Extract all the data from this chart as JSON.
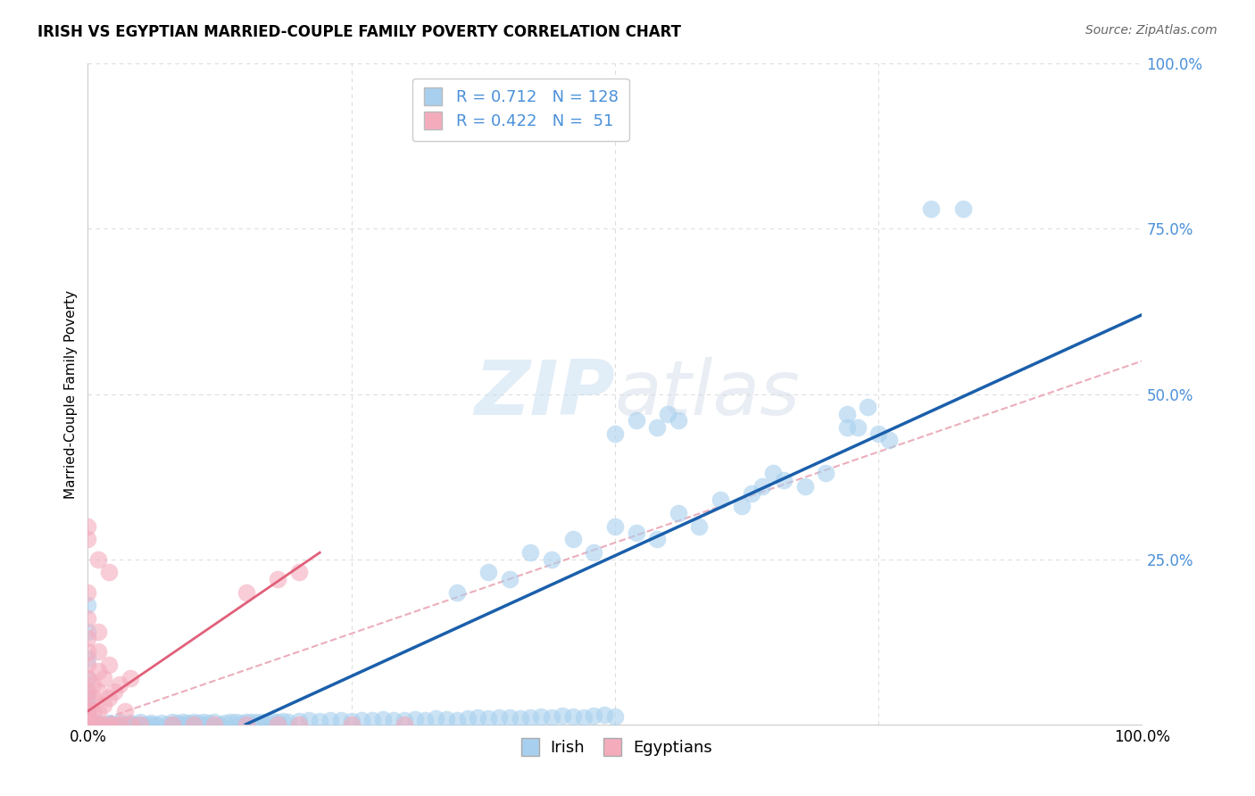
{
  "title": "IRISH VS EGYPTIAN MARRIED-COUPLE FAMILY POVERTY CORRELATION CHART",
  "source": "Source: ZipAtlas.com",
  "ylabel": "Married-Couple Family Poverty",
  "xlim": [
    0.0,
    1.0
  ],
  "ylim": [
    0.0,
    1.0
  ],
  "irish_R": 0.712,
  "irish_N": 128,
  "egyptian_R": 0.422,
  "egyptian_N": 51,
  "irish_color": "#A8D0EE",
  "egyptian_color": "#F4ACBD",
  "irish_line_color": "#1A5FAB",
  "egyptian_line_color": "#E0607A",
  "egyptian_dash_color": "#E8A0B0",
  "grid_color": "#DDDDDD",
  "watermark_color": "#D0E8F5",
  "background_color": "#FFFFFF",
  "title_fontsize": 12,
  "source_fontsize": 10,
  "tick_color": "#4A90D9",
  "ytick_labels": [
    "25.0%",
    "50.0%",
    "75.0%",
    "100.0%"
  ],
  "xtick_labels": [
    "0.0%",
    "100.0%"
  ],
  "irish_scatter": [
    [
      0.0,
      0.18
    ],
    [
      0.0,
      0.14
    ],
    [
      0.0,
      0.1
    ],
    [
      0.0,
      0.07
    ],
    [
      0.0,
      0.05
    ],
    [
      0.0,
      0.04
    ],
    [
      0.0,
      0.03
    ],
    [
      0.0,
      0.02
    ],
    [
      0.0,
      0.015
    ],
    [
      0.0,
      0.01
    ],
    [
      0.0,
      0.008
    ],
    [
      0.0,
      0.005
    ],
    [
      0.0,
      0.003
    ],
    [
      0.0,
      0.001
    ],
    [
      0.0,
      0.0
    ],
    [
      0.005,
      0.0
    ],
    [
      0.01,
      0.0
    ],
    [
      0.01,
      0.002
    ],
    [
      0.015,
      0.0
    ],
    [
      0.02,
      0.0
    ],
    [
      0.02,
      0.002
    ],
    [
      0.025,
      0.0
    ],
    [
      0.03,
      0.0
    ],
    [
      0.03,
      0.003
    ],
    [
      0.035,
      0.0
    ],
    [
      0.04,
      0.0
    ],
    [
      0.04,
      0.002
    ],
    [
      0.045,
      0.0
    ],
    [
      0.05,
      0.0
    ],
    [
      0.05,
      0.003
    ],
    [
      0.055,
      0.0
    ],
    [
      0.06,
      0.0
    ],
    [
      0.06,
      0.002
    ],
    [
      0.065,
      0.0
    ],
    [
      0.07,
      0.002
    ],
    [
      0.075,
      0.0
    ],
    [
      0.08,
      0.0
    ],
    [
      0.08,
      0.003
    ],
    [
      0.085,
      0.002
    ],
    [
      0.09,
      0.0
    ],
    [
      0.09,
      0.003
    ],
    [
      0.095,
      0.002
    ],
    [
      0.1,
      0.0
    ],
    [
      0.1,
      0.003
    ],
    [
      0.105,
      0.002
    ],
    [
      0.11,
      0.0
    ],
    [
      0.11,
      0.004
    ],
    [
      0.115,
      0.002
    ],
    [
      0.12,
      0.003
    ],
    [
      0.125,
      0.0
    ],
    [
      0.13,
      0.002
    ],
    [
      0.135,
      0.003
    ],
    [
      0.14,
      0.004
    ],
    [
      0.145,
      0.002
    ],
    [
      0.15,
      0.003
    ],
    [
      0.155,
      0.004
    ],
    [
      0.16,
      0.003
    ],
    [
      0.165,
      0.004
    ],
    [
      0.17,
      0.003
    ],
    [
      0.175,
      0.005
    ],
    [
      0.18,
      0.004
    ],
    [
      0.185,
      0.005
    ],
    [
      0.19,
      0.004
    ],
    [
      0.2,
      0.005
    ],
    [
      0.21,
      0.006
    ],
    [
      0.22,
      0.005
    ],
    [
      0.23,
      0.007
    ],
    [
      0.24,
      0.006
    ],
    [
      0.25,
      0.005
    ],
    [
      0.26,
      0.007
    ],
    [
      0.27,
      0.006
    ],
    [
      0.28,
      0.008
    ],
    [
      0.29,
      0.007
    ],
    [
      0.3,
      0.006
    ],
    [
      0.31,
      0.008
    ],
    [
      0.32,
      0.007
    ],
    [
      0.33,
      0.009
    ],
    [
      0.34,
      0.008
    ],
    [
      0.35,
      0.007
    ],
    [
      0.36,
      0.009
    ],
    [
      0.37,
      0.01
    ],
    [
      0.38,
      0.009
    ],
    [
      0.39,
      0.011
    ],
    [
      0.4,
      0.01
    ],
    [
      0.41,
      0.009
    ],
    [
      0.42,
      0.011
    ],
    [
      0.43,
      0.012
    ],
    [
      0.44,
      0.01
    ],
    [
      0.45,
      0.013
    ],
    [
      0.46,
      0.012
    ],
    [
      0.47,
      0.011
    ],
    [
      0.48,
      0.013
    ],
    [
      0.49,
      0.014
    ],
    [
      0.5,
      0.012
    ],
    [
      0.35,
      0.2
    ],
    [
      0.38,
      0.23
    ],
    [
      0.4,
      0.22
    ],
    [
      0.42,
      0.26
    ],
    [
      0.44,
      0.25
    ],
    [
      0.46,
      0.28
    ],
    [
      0.48,
      0.26
    ],
    [
      0.5,
      0.3
    ],
    [
      0.52,
      0.29
    ],
    [
      0.54,
      0.28
    ],
    [
      0.56,
      0.32
    ],
    [
      0.58,
      0.3
    ],
    [
      0.6,
      0.34
    ],
    [
      0.62,
      0.33
    ],
    [
      0.63,
      0.35
    ],
    [
      0.64,
      0.36
    ],
    [
      0.65,
      0.38
    ],
    [
      0.66,
      0.37
    ],
    [
      0.68,
      0.36
    ],
    [
      0.7,
      0.38
    ],
    [
      0.72,
      0.45
    ],
    [
      0.73,
      0.45
    ],
    [
      0.75,
      0.44
    ],
    [
      0.5,
      0.44
    ],
    [
      0.52,
      0.46
    ],
    [
      0.54,
      0.45
    ],
    [
      0.55,
      0.47
    ],
    [
      0.56,
      0.46
    ],
    [
      0.72,
      0.47
    ],
    [
      0.74,
      0.48
    ],
    [
      0.76,
      0.43
    ],
    [
      0.8,
      0.78
    ],
    [
      0.83,
      0.78
    ]
  ],
  "egyptian_scatter": [
    [
      0.0,
      0.005
    ],
    [
      0.0,
      0.01
    ],
    [
      0.0,
      0.02
    ],
    [
      0.0,
      0.03
    ],
    [
      0.0,
      0.05
    ],
    [
      0.0,
      0.07
    ],
    [
      0.0,
      0.09
    ],
    [
      0.0,
      0.11
    ],
    [
      0.0,
      0.13
    ],
    [
      0.0,
      0.16
    ],
    [
      0.0,
      0.2
    ],
    [
      0.005,
      0.0
    ],
    [
      0.005,
      0.02
    ],
    [
      0.005,
      0.04
    ],
    [
      0.005,
      0.06
    ],
    [
      0.01,
      0.0
    ],
    [
      0.01,
      0.02
    ],
    [
      0.01,
      0.05
    ],
    [
      0.01,
      0.08
    ],
    [
      0.01,
      0.11
    ],
    [
      0.01,
      0.14
    ],
    [
      0.015,
      0.0
    ],
    [
      0.015,
      0.03
    ],
    [
      0.015,
      0.07
    ],
    [
      0.02,
      0.0
    ],
    [
      0.02,
      0.04
    ],
    [
      0.02,
      0.09
    ],
    [
      0.025,
      0.0
    ],
    [
      0.025,
      0.05
    ],
    [
      0.03,
      0.0
    ],
    [
      0.03,
      0.06
    ],
    [
      0.035,
      0.02
    ],
    [
      0.04,
      0.0
    ],
    [
      0.04,
      0.07
    ],
    [
      0.0,
      0.28
    ],
    [
      0.01,
      0.25
    ],
    [
      0.02,
      0.23
    ],
    [
      0.0,
      0.3
    ],
    [
      0.15,
      0.2
    ],
    [
      0.18,
      0.22
    ],
    [
      0.2,
      0.23
    ],
    [
      0.05,
      0.0
    ],
    [
      0.08,
      0.0
    ],
    [
      0.1,
      0.0
    ],
    [
      0.12,
      0.0
    ],
    [
      0.15,
      0.0
    ],
    [
      0.18,
      0.0
    ],
    [
      0.2,
      0.0
    ],
    [
      0.25,
      0.0
    ],
    [
      0.3,
      0.0
    ]
  ]
}
